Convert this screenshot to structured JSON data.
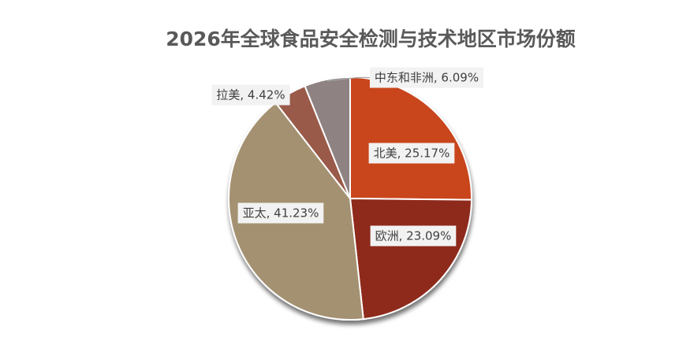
{
  "chart_data": {
    "type": "pie",
    "title": "2026年全球食品安全检测与技术地区市场份额",
    "slices": [
      {
        "label": "北美",
        "value": 25.17,
        "display": "北美, 25.17%",
        "color": "#c9441e"
      },
      {
        "label": "欧洲",
        "value": 23.09,
        "display": "欧洲, 23.09%",
        "color": "#8e2a1e"
      },
      {
        "label": "亚太",
        "value": 41.23,
        "display": "亚太, 41.23%",
        "color": "#a49171"
      },
      {
        "label": "拉美",
        "value": 4.42,
        "display": "拉美, 4.42%",
        "color": "#9a5a48"
      },
      {
        "label": "中东和非洲",
        "value": 6.09,
        "display": "中东和非洲, 6.09%",
        "color": "#8e8283"
      }
    ],
    "start_angle": "12 o'clock",
    "direction": "clockwise",
    "legend": "none",
    "data_labels": "category, percent"
  }
}
